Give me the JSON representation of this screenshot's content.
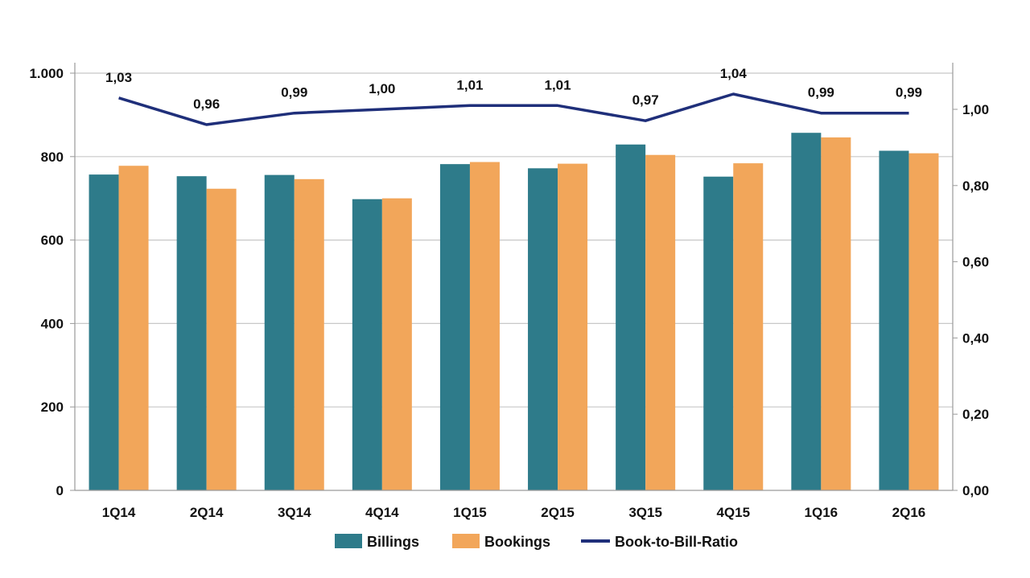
{
  "chart_data": {
    "type": "bar",
    "title": "",
    "categories": [
      "1Q14",
      "2Q14",
      "3Q14",
      "4Q14",
      "1Q15",
      "2Q15",
      "3Q15",
      "4Q15",
      "1Q16",
      "2Q16"
    ],
    "series": [
      {
        "name": "Billings",
        "type": "bar",
        "axis": "left",
        "color": "#2e7b8a",
        "values": [
          757,
          753,
          756,
          698,
          782,
          772,
          829,
          752,
          857,
          814
        ]
      },
      {
        "name": "Bookings",
        "type": "bar",
        "axis": "left",
        "color": "#f2a65a",
        "values": [
          778,
          723,
          746,
          700,
          787,
          783,
          804,
          784,
          846,
          808
        ]
      },
      {
        "name": "Book-to-Bill-Ratio",
        "type": "line",
        "axis": "right",
        "color": "#1f2f7a",
        "values": [
          1.03,
          0.96,
          0.99,
          1.0,
          1.01,
          1.01,
          0.97,
          1.04,
          0.99,
          0.99
        ],
        "labels": [
          "1,03",
          "0,96",
          "0,99",
          "1,00",
          "1,01",
          "1,01",
          "0,97",
          "1,04",
          "0,99",
          "0,99"
        ]
      }
    ],
    "y_left": {
      "lim": [
        0,
        1000
      ],
      "ticks": [
        0,
        200,
        400,
        600,
        800,
        1000
      ],
      "tick_labels": [
        "0",
        "200",
        "400",
        "600",
        "800",
        "1.000"
      ]
    },
    "y_right": {
      "lim": [
        0,
        1.1
      ],
      "ticks": [
        0,
        0.2,
        0.4,
        0.6,
        0.8,
        1.0
      ],
      "tick_labels": [
        "0,00",
        "0,20",
        "0,40",
        "0,60",
        "0,80",
        "1,00"
      ]
    },
    "grid": true,
    "legend_position": "bottom-center"
  }
}
